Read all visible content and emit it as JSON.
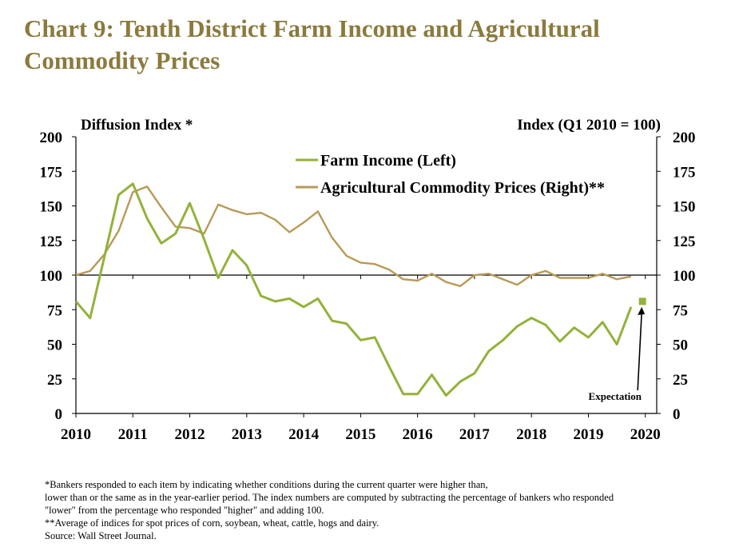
{
  "title": "Chart 9: Tenth District Farm Income and Agricultural Commodity Prices",
  "colors": {
    "title": "#8b7a3c",
    "farm_income": "#93b23a",
    "commodity_prices": "#b89a57"
  },
  "chart_data": {
    "type": "line",
    "left_axis_label": "Diffusion Index *",
    "right_axis_label": "Index (Q1 2010 = 100)",
    "ylim": [
      0,
      200
    ],
    "y_ticks": [
      "0",
      "25",
      "50",
      "75",
      "100",
      "125",
      "150",
      "175",
      "200"
    ],
    "x_range": [
      2010,
      2020.2
    ],
    "x_ticks": [
      "2010",
      "2011",
      "2012",
      "2013",
      "2014",
      "2015",
      "2016",
      "2017",
      "2018",
      "2019",
      "2020"
    ],
    "reference_line": 100,
    "legend_position": "top-center",
    "series": [
      {
        "name": "Farm Income (Left)",
        "axis": "left",
        "x": [
          2010.0,
          2010.25,
          2010.5,
          2010.75,
          2011.0,
          2011.25,
          2011.5,
          2011.75,
          2012.0,
          2012.25,
          2012.5,
          2012.75,
          2013.0,
          2013.25,
          2013.5,
          2013.75,
          2014.0,
          2014.25,
          2014.5,
          2014.75,
          2015.0,
          2015.25,
          2015.5,
          2015.75,
          2016.0,
          2016.25,
          2016.5,
          2016.75,
          2017.0,
          2017.25,
          2017.5,
          2017.75,
          2018.0,
          2018.25,
          2018.5,
          2018.75,
          2019.0,
          2019.25,
          2019.5,
          2019.75
        ],
        "values": [
          81,
          69,
          113,
          158,
          166,
          141,
          123,
          130,
          152,
          126,
          98,
          118,
          107,
          85,
          81,
          83,
          77,
          83,
          67,
          65,
          53,
          55,
          34,
          14,
          14,
          28,
          13,
          23,
          29,
          45,
          53,
          63,
          69,
          64,
          52,
          62,
          55,
          66,
          50,
          77
        ]
      },
      {
        "name": "Agricultural Commodity Prices (Right)**",
        "axis": "right",
        "x": [
          2010.0,
          2010.25,
          2010.5,
          2010.75,
          2011.0,
          2011.25,
          2011.5,
          2011.75,
          2012.0,
          2012.25,
          2012.5,
          2012.75,
          2013.0,
          2013.25,
          2013.5,
          2013.75,
          2014.0,
          2014.25,
          2014.5,
          2014.75,
          2015.0,
          2015.25,
          2015.5,
          2015.75,
          2016.0,
          2016.25,
          2016.5,
          2016.75,
          2017.0,
          2017.25,
          2017.5,
          2017.75,
          2018.0,
          2018.25,
          2018.5,
          2018.75,
          2019.0,
          2019.25,
          2019.5,
          2019.75
        ],
        "values": [
          100,
          103,
          115,
          132,
          160,
          164,
          149,
          135,
          134,
          130,
          151,
          147,
          144,
          145,
          140,
          131,
          138,
          146,
          127,
          114,
          109,
          108,
          104,
          97,
          96,
          101,
          95,
          92,
          100,
          101,
          97,
          93,
          100,
          103,
          98,
          98,
          98,
          101,
          97,
          99
        ]
      }
    ],
    "expectation": {
      "x": 2019.95,
      "value": 81,
      "label": "Expectation"
    }
  },
  "notes": [
    "*Bankers responded to each item by indicating whether conditions during the current quarter were higher than,",
    "lower than or the same as in the year-earlier period.  The index numbers are computed by subtracting the percentage of bankers who responded",
    "\"lower\" from the percentage who responded \"higher\" and adding 100.",
    "**Average of indices for spot prices of corn, soybean, wheat, cattle, hogs and dairy.",
    "Source: Wall Street Journal."
  ]
}
